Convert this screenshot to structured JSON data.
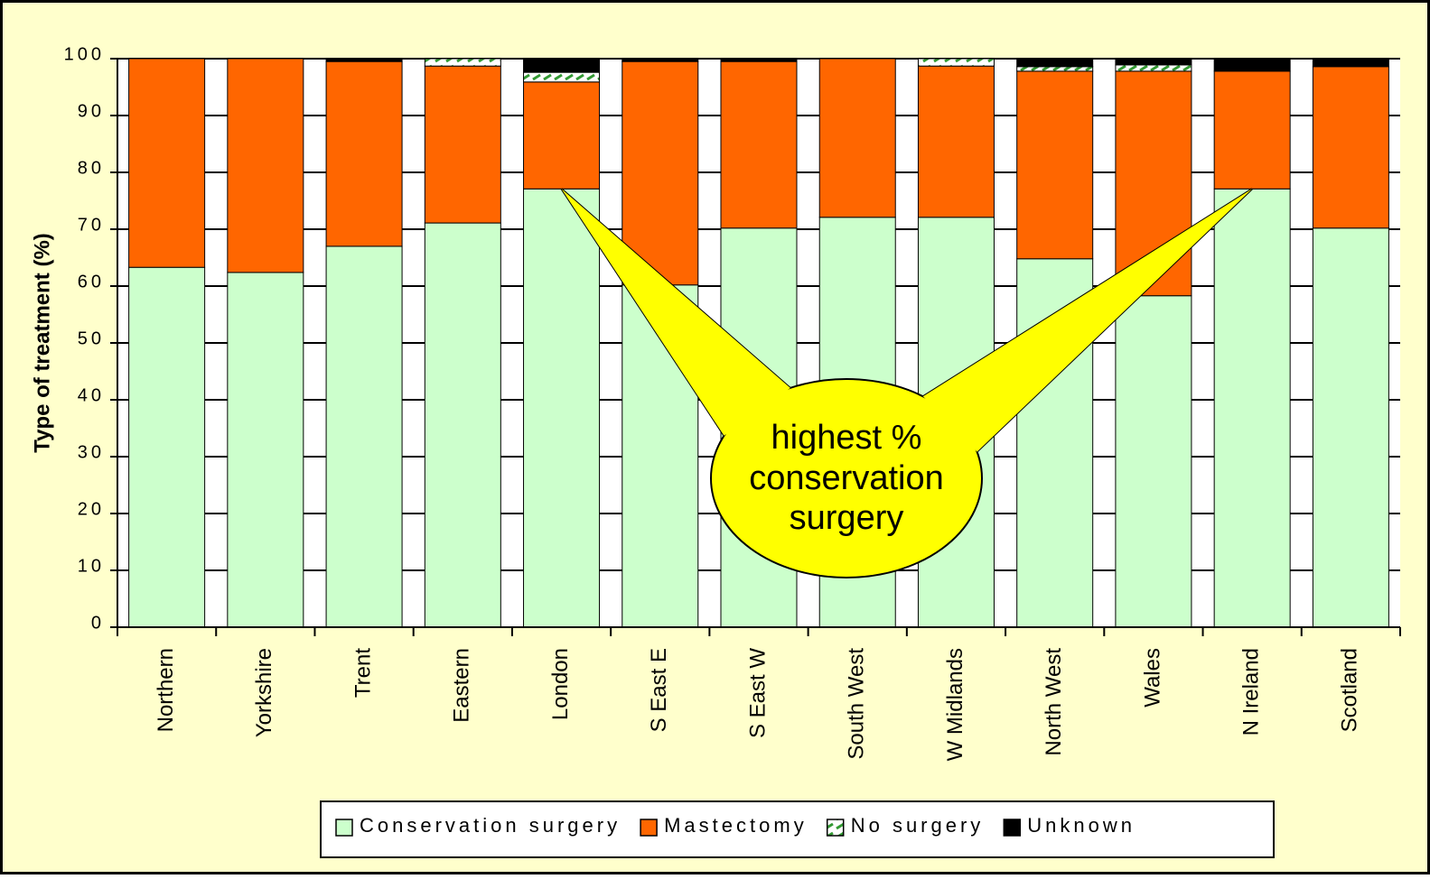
{
  "chart_data": {
    "type": "stacked_bar",
    "y_label": "Type of treatment (%)",
    "categories": [
      "Northern",
      "Yorkshire",
      "Trent",
      "Eastern",
      "London",
      "S East E",
      "S East W",
      "South West",
      "W Midlands",
      "North West",
      "Wales",
      "N Ireland",
      "Scotland"
    ],
    "series": [
      {
        "name": "Conservation surgery",
        "color": "#ccffcc",
        "values": [
          63.3,
          62.4,
          67.0,
          71.1,
          77.1,
          60.2,
          70.2,
          72.1,
          72.1,
          64.8,
          58.3,
          77.1,
          70.2
        ]
      },
      {
        "name": "Mastectomy",
        "color": "#ff6600",
        "values": [
          36.7,
          37.6,
          32.5,
          27.6,
          18.8,
          39.3,
          29.3,
          27.9,
          26.6,
          33.0,
          39.5,
          20.7,
          28.4
        ]
      },
      {
        "name": "No surgery",
        "color": "#339933",
        "hatch": true,
        "values": [
          0,
          0,
          0,
          1.3,
          1.7,
          0,
          0,
          0,
          1.3,
          0.8,
          1.1,
          0,
          0
        ]
      },
      {
        "name": "Unknown",
        "color": "#000000",
        "values": [
          0,
          0,
          0.5,
          0,
          2.4,
          0.5,
          0.5,
          0,
          0,
          1.4,
          1.1,
          2.2,
          1.4
        ]
      }
    ],
    "ylim": [
      0,
      100
    ],
    "yticks": [
      0,
      10,
      20,
      30,
      40,
      50,
      60,
      70,
      80,
      90,
      100
    ],
    "grid": true,
    "annotation": {
      "text": "highest % conservation surgery",
      "targets": [
        4,
        11
      ]
    }
  }
}
